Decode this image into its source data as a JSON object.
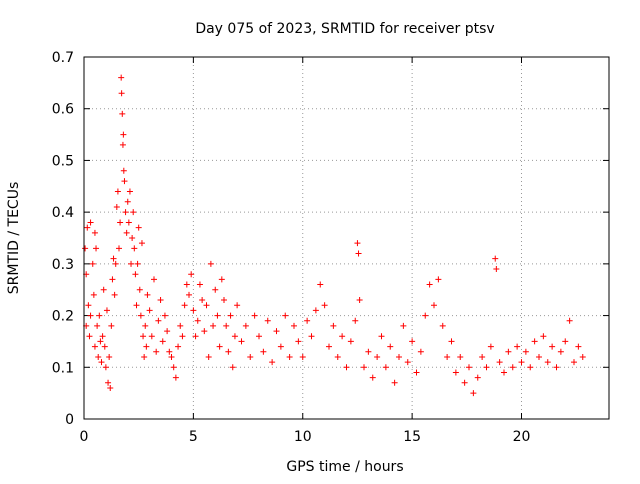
{
  "chart_data": {
    "type": "scatter",
    "title": "Day 075 of 2023, SRMTID for receiver ptsv",
    "xlabel": "GPS time / hours",
    "ylabel": "SRMTID / TECUs",
    "xlim": [
      0,
      24
    ],
    "ylim": [
      0,
      0.7
    ],
    "xticks": [
      0,
      5,
      10,
      15,
      20
    ],
    "xtick_labels": [
      "0",
      "5",
      "10",
      "15",
      "20"
    ],
    "yticks": [
      0,
      0.1,
      0.2,
      0.3,
      0.4,
      0.5,
      0.6,
      0.7
    ],
    "ytick_labels": [
      "0",
      "0.1",
      "0.2",
      "0.3",
      "0.4",
      "0.5",
      "0.6",
      "0.7"
    ],
    "grid": true,
    "marker": "+",
    "color": "#ff0000",
    "series": [
      {
        "name": "SRMTID",
        "points": [
          [
            0.05,
            0.33
          ],
          [
            0.1,
            0.28
          ],
          [
            0.1,
            0.18
          ],
          [
            0.15,
            0.37
          ],
          [
            0.2,
            0.22
          ],
          [
            0.25,
            0.16
          ],
          [
            0.3,
            0.38
          ],
          [
            0.3,
            0.2
          ],
          [
            0.4,
            0.3
          ],
          [
            0.45,
            0.24
          ],
          [
            0.5,
            0.36
          ],
          [
            0.5,
            0.14
          ],
          [
            0.55,
            0.33
          ],
          [
            0.6,
            0.18
          ],
          [
            0.65,
            0.12
          ],
          [
            0.7,
            0.2
          ],
          [
            0.75,
            0.15
          ],
          [
            0.8,
            0.11
          ],
          [
            0.85,
            0.16
          ],
          [
            0.9,
            0.25
          ],
          [
            0.95,
            0.14
          ],
          [
            1.0,
            0.1
          ],
          [
            1.05,
            0.21
          ],
          [
            1.1,
            0.07
          ],
          [
            1.15,
            0.12
          ],
          [
            1.2,
            0.06
          ],
          [
            1.25,
            0.18
          ],
          [
            1.3,
            0.27
          ],
          [
            1.35,
            0.31
          ],
          [
            1.4,
            0.24
          ],
          [
            1.45,
            0.3
          ],
          [
            1.5,
            0.41
          ],
          [
            1.55,
            0.44
          ],
          [
            1.6,
            0.33
          ],
          [
            1.65,
            0.38
          ],
          [
            1.7,
            0.66
          ],
          [
            1.72,
            0.63
          ],
          [
            1.75,
            0.59
          ],
          [
            1.78,
            0.53
          ],
          [
            1.8,
            0.55
          ],
          [
            1.82,
            0.48
          ],
          [
            1.85,
            0.46
          ],
          [
            1.9,
            0.4
          ],
          [
            1.95,
            0.36
          ],
          [
            2.0,
            0.42
          ],
          [
            2.05,
            0.38
          ],
          [
            2.1,
            0.44
          ],
          [
            2.15,
            0.3
          ],
          [
            2.2,
            0.35
          ],
          [
            2.25,
            0.4
          ],
          [
            2.3,
            0.33
          ],
          [
            2.35,
            0.28
          ],
          [
            2.4,
            0.22
          ],
          [
            2.45,
            0.3
          ],
          [
            2.5,
            0.37
          ],
          [
            2.55,
            0.25
          ],
          [
            2.6,
            0.2
          ],
          [
            2.65,
            0.34
          ],
          [
            2.7,
            0.16
          ],
          [
            2.75,
            0.12
          ],
          [
            2.8,
            0.18
          ],
          [
            2.85,
            0.14
          ],
          [
            2.9,
            0.24
          ],
          [
            3.0,
            0.21
          ],
          [
            3.1,
            0.16
          ],
          [
            3.2,
            0.27
          ],
          [
            3.3,
            0.13
          ],
          [
            3.4,
            0.19
          ],
          [
            3.5,
            0.23
          ],
          [
            3.6,
            0.15
          ],
          [
            3.7,
            0.2
          ],
          [
            3.8,
            0.17
          ],
          [
            3.9,
            0.13
          ],
          [
            4.0,
            0.12
          ],
          [
            4.1,
            0.1
          ],
          [
            4.2,
            0.08
          ],
          [
            4.3,
            0.14
          ],
          [
            4.4,
            0.18
          ],
          [
            4.5,
            0.16
          ],
          [
            4.6,
            0.22
          ],
          [
            4.7,
            0.26
          ],
          [
            4.8,
            0.24
          ],
          [
            4.9,
            0.28
          ],
          [
            5.0,
            0.21
          ],
          [
            5.1,
            0.16
          ],
          [
            5.2,
            0.19
          ],
          [
            5.3,
            0.26
          ],
          [
            5.4,
            0.23
          ],
          [
            5.5,
            0.17
          ],
          [
            5.6,
            0.22
          ],
          [
            5.7,
            0.12
          ],
          [
            5.8,
            0.3
          ],
          [
            5.9,
            0.18
          ],
          [
            6.0,
            0.25
          ],
          [
            6.1,
            0.2
          ],
          [
            6.2,
            0.14
          ],
          [
            6.3,
            0.27
          ],
          [
            6.4,
            0.23
          ],
          [
            6.5,
            0.18
          ],
          [
            6.6,
            0.13
          ],
          [
            6.7,
            0.2
          ],
          [
            6.8,
            0.1
          ],
          [
            6.9,
            0.16
          ],
          [
            7.0,
            0.22
          ],
          [
            7.2,
            0.15
          ],
          [
            7.4,
            0.18
          ],
          [
            7.6,
            0.12
          ],
          [
            7.8,
            0.2
          ],
          [
            8.0,
            0.16
          ],
          [
            8.2,
            0.13
          ],
          [
            8.4,
            0.19
          ],
          [
            8.6,
            0.11
          ],
          [
            8.8,
            0.17
          ],
          [
            9.0,
            0.14
          ],
          [
            9.2,
            0.2
          ],
          [
            9.4,
            0.12
          ],
          [
            9.6,
            0.18
          ],
          [
            9.8,
            0.15
          ],
          [
            10.0,
            0.12
          ],
          [
            10.2,
            0.19
          ],
          [
            10.4,
            0.16
          ],
          [
            10.6,
            0.21
          ],
          [
            10.8,
            0.26
          ],
          [
            11.0,
            0.22
          ],
          [
            11.2,
            0.14
          ],
          [
            11.4,
            0.18
          ],
          [
            11.6,
            0.12
          ],
          [
            11.8,
            0.16
          ],
          [
            12.0,
            0.1
          ],
          [
            12.2,
            0.15
          ],
          [
            12.4,
            0.19
          ],
          [
            12.5,
            0.34
          ],
          [
            12.55,
            0.32
          ],
          [
            12.6,
            0.23
          ],
          [
            12.8,
            0.1
          ],
          [
            13.0,
            0.13
          ],
          [
            13.2,
            0.08
          ],
          [
            13.4,
            0.12
          ],
          [
            13.6,
            0.16
          ],
          [
            13.8,
            0.1
          ],
          [
            14.0,
            0.14
          ],
          [
            14.2,
            0.07
          ],
          [
            14.4,
            0.12
          ],
          [
            14.6,
            0.18
          ],
          [
            14.8,
            0.11
          ],
          [
            15.0,
            0.15
          ],
          [
            15.2,
            0.09
          ],
          [
            15.4,
            0.13
          ],
          [
            15.6,
            0.2
          ],
          [
            15.8,
            0.26
          ],
          [
            16.0,
            0.22
          ],
          [
            16.2,
            0.27
          ],
          [
            16.4,
            0.18
          ],
          [
            16.6,
            0.12
          ],
          [
            16.8,
            0.15
          ],
          [
            17.0,
            0.09
          ],
          [
            17.2,
            0.12
          ],
          [
            17.4,
            0.07
          ],
          [
            17.6,
            0.1
          ],
          [
            17.8,
            0.05
          ],
          [
            18.0,
            0.08
          ],
          [
            18.2,
            0.12
          ],
          [
            18.4,
            0.1
          ],
          [
            18.6,
            0.14
          ],
          [
            18.8,
            0.31
          ],
          [
            18.85,
            0.29
          ],
          [
            19.0,
            0.11
          ],
          [
            19.2,
            0.09
          ],
          [
            19.4,
            0.13
          ],
          [
            19.6,
            0.1
          ],
          [
            19.8,
            0.14
          ],
          [
            20.0,
            0.11
          ],
          [
            20.2,
            0.13
          ],
          [
            20.4,
            0.1
          ],
          [
            20.6,
            0.15
          ],
          [
            20.8,
            0.12
          ],
          [
            21.0,
            0.16
          ],
          [
            21.2,
            0.11
          ],
          [
            21.4,
            0.14
          ],
          [
            21.6,
            0.1
          ],
          [
            21.8,
            0.13
          ],
          [
            22.0,
            0.15
          ],
          [
            22.2,
            0.19
          ],
          [
            22.4,
            0.11
          ],
          [
            22.6,
            0.14
          ],
          [
            22.8,
            0.12
          ]
        ]
      }
    ]
  }
}
